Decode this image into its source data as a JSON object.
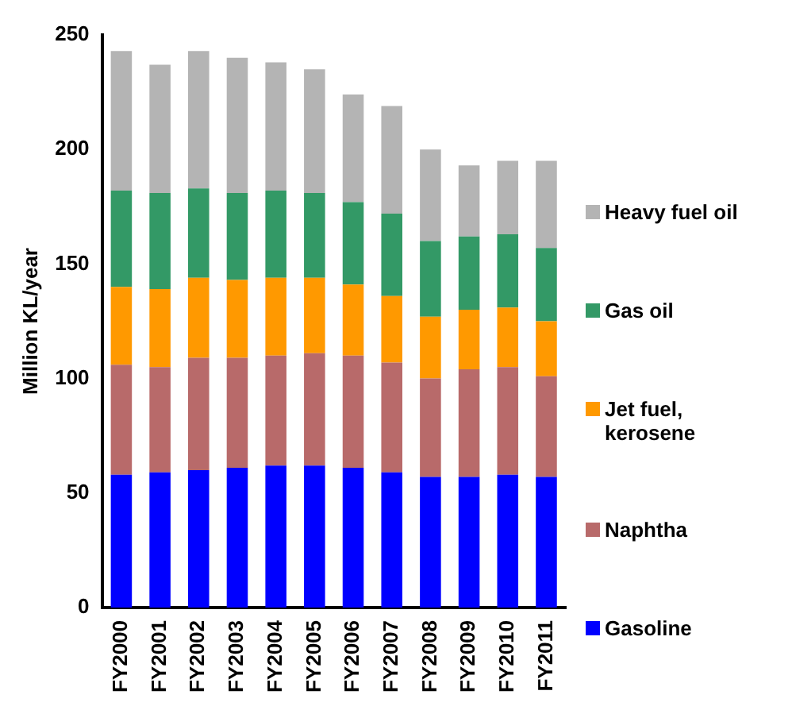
{
  "chart_data": {
    "type": "bar",
    "stacked": true,
    "ylabel": "Million KL/year",
    "categories": [
      "FY2000",
      "FY2001",
      "FY2002",
      "FY2003",
      "FY2004",
      "FY2005",
      "FY2006",
      "FY2007",
      "FY2008",
      "FY2009",
      "FY2010",
      "FY2011"
    ],
    "series": [
      {
        "name": "Gasoline",
        "color": "#0000ff",
        "values": [
          58,
          59,
          60,
          61,
          62,
          62,
          61,
          59,
          57,
          57,
          58,
          57
        ]
      },
      {
        "name": "Naphtha",
        "color": "#b86a6a",
        "values": [
          48,
          46,
          49,
          48,
          48,
          49,
          49,
          48,
          43,
          47,
          47,
          44
        ]
      },
      {
        "name": "Jet fuel, kerosene",
        "color": "#ff9900",
        "values": [
          34,
          34,
          35,
          34,
          34,
          33,
          31,
          29,
          27,
          26,
          26,
          24
        ]
      },
      {
        "name": "Gas oil",
        "color": "#339966",
        "values": [
          42,
          42,
          39,
          38,
          38,
          37,
          36,
          36,
          33,
          32,
          32,
          32
        ]
      },
      {
        "name": "Heavy fuel oil",
        "color": "#b4b4b4",
        "values": [
          61,
          56,
          60,
          59,
          56,
          54,
          47,
          47,
          40,
          31,
          32,
          38
        ]
      }
    ],
    "ylim": [
      0,
      250
    ],
    "yticks": [
      0,
      50,
      100,
      150,
      200,
      250
    ],
    "grid": false,
    "legend": "right"
  }
}
